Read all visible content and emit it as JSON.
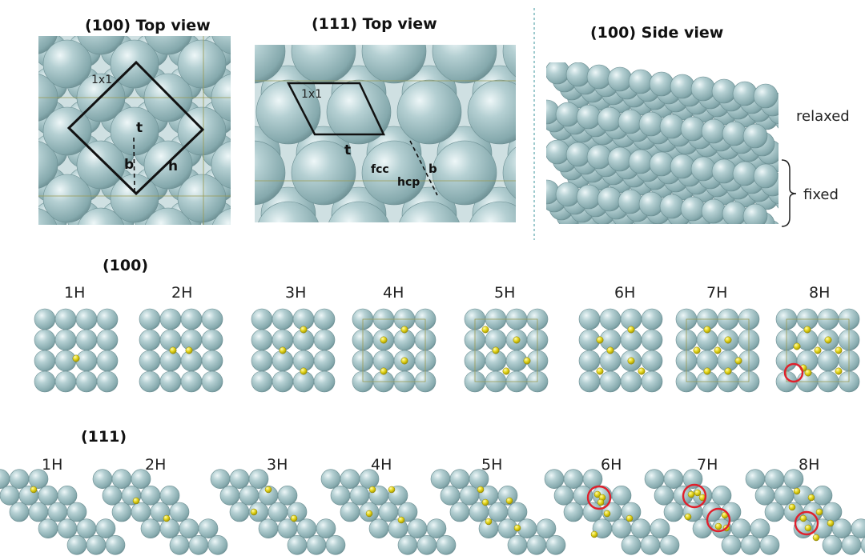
{
  "top_panels": {
    "p100_title": "(100) Top view",
    "p111_title": "(111) Top view",
    "side_title": "(100) Side view",
    "cell_label_100": "1x1",
    "cell_label_111": "1x1",
    "site_labels_100": {
      "t": "t",
      "b": "b",
      "h": "h"
    },
    "site_labels_111": {
      "t": "t",
      "fcc": "fcc",
      "hcp": "hcp",
      "b": "b"
    },
    "side_relaxed": "relaxed",
    "side_fixed": "fixed"
  },
  "rows": {
    "row100_label": "(100)",
    "row111_label": "(111)",
    "coverage_labels": [
      "1H",
      "2H",
      "3H",
      "4H",
      "5H",
      "6H",
      "7H",
      "8H"
    ]
  },
  "colors": {
    "atom": "#9dbfc3",
    "atom_dark": "#6f9499",
    "hydrogen": "#e3d51a",
    "highlight": "#e0202c",
    "divider": "#7fb8bd"
  },
  "highlighted_structures": [
    "(100) 8H",
    "(111) 6H",
    "(111) 7H",
    "(111) 8H"
  ]
}
